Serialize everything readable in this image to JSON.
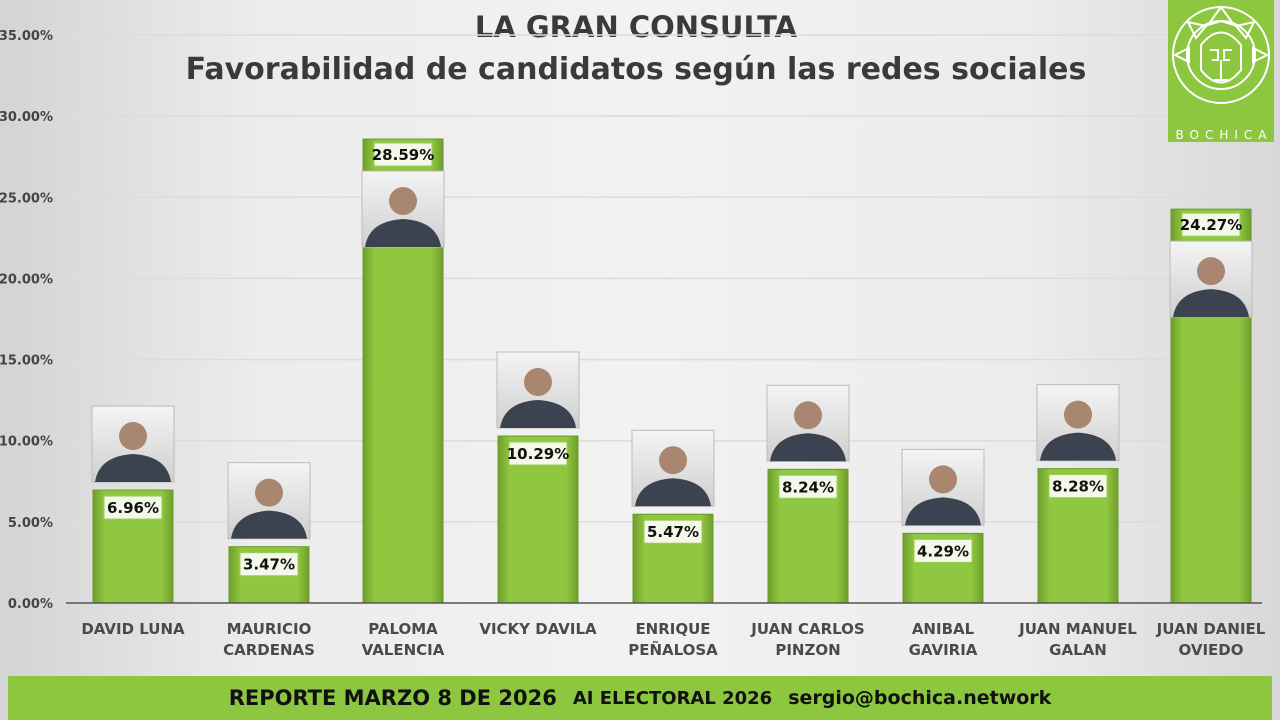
{
  "title": "LA GRAN CONSULTA",
  "subtitle": "Favorabilidad de candidatos según las redes sociales",
  "logo": {
    "text": "BOCHICA",
    "color": "#8dc63f"
  },
  "footer": {
    "report": "REPORTE MARZO 8 DE 2026",
    "tag": "AI ELECTORAL 2026",
    "email": "sergio@bochica.network"
  },
  "colors": {
    "bar": "#8dc63f",
    "bar_dark": "#6a9a2a",
    "footer": "#8dc63f"
  },
  "chart_data": {
    "type": "bar",
    "title": "LA GRAN CONSULTA",
    "subtitle": "Favorabilidad de candidatos según las redes sociales",
    "categories": [
      [
        "DAVID LUNA"
      ],
      [
        "MAURICIO",
        "CARDENAS"
      ],
      [
        "PALOMA",
        "VALENCIA"
      ],
      [
        "VICKY DAVILA"
      ],
      [
        "ENRIQUE",
        "PEÑALOSA"
      ],
      [
        "JUAN CARLOS",
        "PINZON"
      ],
      [
        "ANIBAL",
        "GAVIRIA"
      ],
      [
        "JUAN MANUEL",
        "GALAN"
      ],
      [
        "JUAN DANIEL",
        "OVIEDO"
      ]
    ],
    "values": [
      6.96,
      3.47,
      28.59,
      10.29,
      5.47,
      8.24,
      4.29,
      8.28,
      24.27
    ],
    "data_labels": [
      "6.96%",
      "3.47%",
      "28.59%",
      "10.29%",
      "5.47%",
      "8.24%",
      "4.29%",
      "8.28%",
      "24.27%"
    ],
    "ylim": [
      0,
      35
    ],
    "yticks": [
      "0.00%",
      "5.00%",
      "10.00%",
      "15.00%",
      "20.00%",
      "25.00%",
      "30.00%",
      "35.00%"
    ],
    "grid": true,
    "candidate_photos": true
  }
}
